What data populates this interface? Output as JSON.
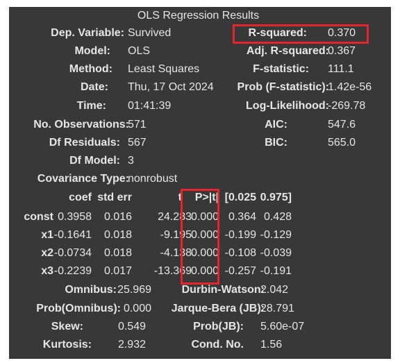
{
  "title": "OLS Regression Results",
  "top": {
    "left": [
      {
        "label": "Dep. Variable:",
        "value": "Survived"
      },
      {
        "label": "Model:",
        "value": "OLS"
      },
      {
        "label": "Method:",
        "value": "Least Squares"
      },
      {
        "label": "Date:",
        "value": "Thu, 17 Oct 2024"
      },
      {
        "label": "Time:",
        "value": "01:41:39"
      },
      {
        "label": "No. Observations:",
        "value": "571"
      },
      {
        "label": "Df Residuals:",
        "value": "567"
      },
      {
        "label": "Df Model:",
        "value": "3"
      },
      {
        "label": "Covariance Type:",
        "value": "nonrobust"
      }
    ],
    "right": [
      {
        "label": "R-squared:",
        "value": "0.370"
      },
      {
        "label": "Adj. R-squared:",
        "value": "0.367"
      },
      {
        "label": "F-statistic:",
        "value": "111.1"
      },
      {
        "label": "Prob (F-statistic):",
        "value": "1.42e-56"
      },
      {
        "label": "Log-Likelihood:",
        "value": "-269.78"
      },
      {
        "label": "AIC:",
        "value": "547.6"
      },
      {
        "label": "BIC:",
        "value": "565.0"
      }
    ]
  },
  "coef_table": {
    "headers": [
      "coef",
      "std err",
      "t",
      "P>|t|",
      "[0.025",
      "0.975]"
    ],
    "rows": [
      {
        "name": "const",
        "values": [
          "0.3958",
          "0.016",
          "24.283",
          "0.000",
          "0.364",
          "0.428"
        ]
      },
      {
        "name": "x1",
        "values": [
          "-0.1641",
          "0.018",
          "-9.195",
          "0.000",
          "-0.199",
          "-0.129"
        ]
      },
      {
        "name": "x2",
        "values": [
          "-0.0734",
          "0.018",
          "-4.138",
          "0.000",
          "-0.108",
          "-0.039"
        ]
      },
      {
        "name": "x3",
        "values": [
          "-0.2239",
          "0.017",
          "-13.369",
          "0.000",
          "-0.257",
          "-0.191"
        ]
      }
    ]
  },
  "bottom": {
    "left": [
      {
        "label": "Omnibus:",
        "value": "25.969"
      },
      {
        "label": "Prob(Omnibus):",
        "value": "0.000"
      },
      {
        "label": "Skew:",
        "value": "0.549"
      },
      {
        "label": "Kurtosis:",
        "value": "2.932"
      }
    ],
    "right": [
      {
        "label": "Durbin-Watson:",
        "value": "2.042"
      },
      {
        "label": "Jarque-Bera (JB):",
        "value": "28.791"
      },
      {
        "label": "Prob(JB):",
        "value": "5.60e-07"
      },
      {
        "label": "Cond. No.",
        "value": "1.56"
      }
    ]
  },
  "highlight_color": "#e5242b"
}
